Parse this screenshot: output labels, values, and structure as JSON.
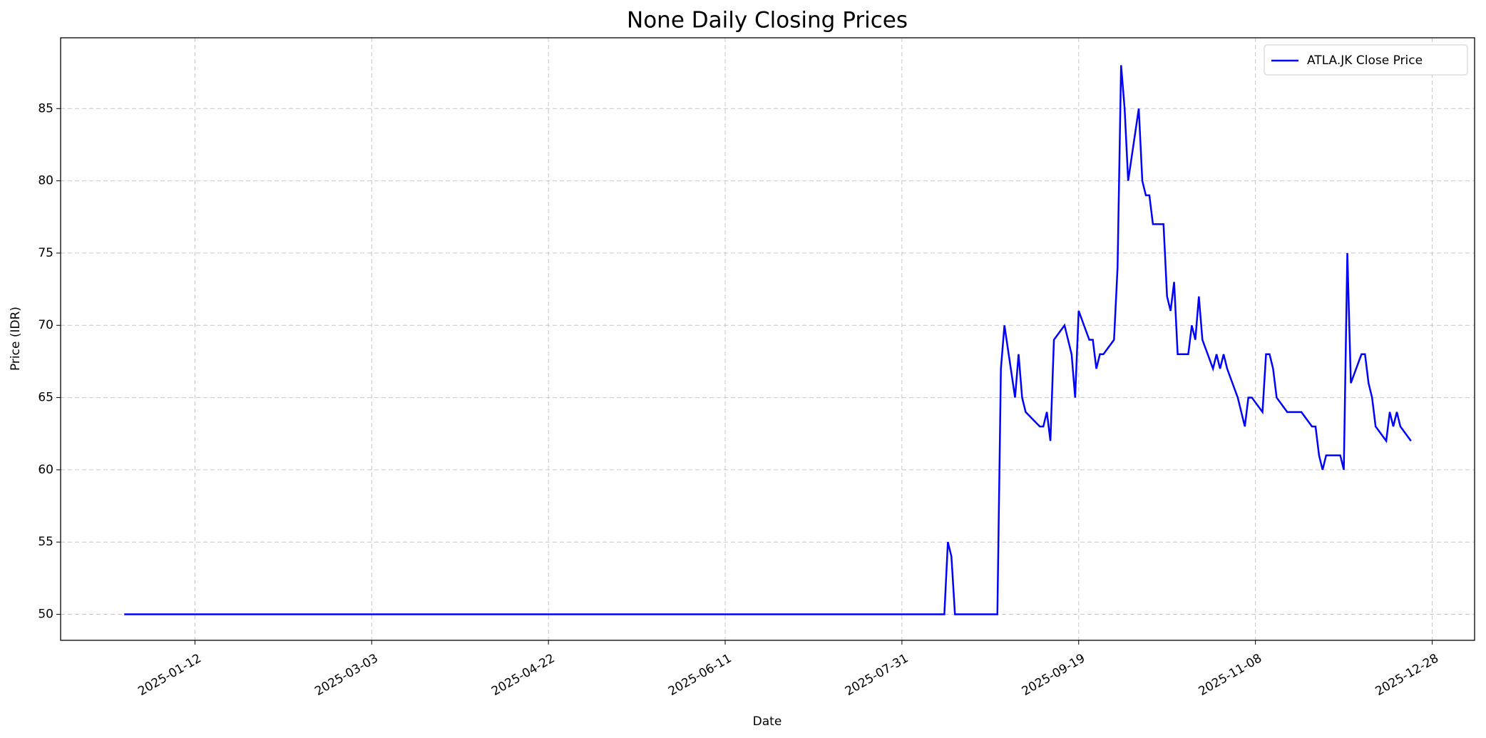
{
  "chart_data": {
    "type": "line",
    "title": "None Daily Closing Prices",
    "x_label": "Date",
    "y_label": "Price (IDR)",
    "x": [
      "2024-12-23",
      "2025-08-12",
      "2025-08-13",
      "2025-08-14",
      "2025-08-15",
      "2025-08-27",
      "2025-08-28",
      "2025-08-29",
      "2025-09-01",
      "2025-09-02",
      "2025-09-03",
      "2025-09-04",
      "2025-09-08",
      "2025-09-09",
      "2025-09-10",
      "2025-09-11",
      "2025-09-12",
      "2025-09-15",
      "2025-09-17",
      "2025-09-18",
      "2025-09-19",
      "2025-09-22",
      "2025-09-23",
      "2025-09-24",
      "2025-09-25",
      "2025-09-26",
      "2025-09-29",
      "2025-09-30",
      "2025-10-01",
      "2025-10-02",
      "2025-10-03",
      "2025-10-06",
      "2025-10-07",
      "2025-10-08",
      "2025-10-09",
      "2025-10-10",
      "2025-10-13",
      "2025-10-14",
      "2025-10-15",
      "2025-10-16",
      "2025-10-17",
      "2025-10-20",
      "2025-10-21",
      "2025-10-22",
      "2025-10-23",
      "2025-10-24",
      "2025-10-27",
      "2025-10-28",
      "2025-10-29",
      "2025-10-30",
      "2025-10-31",
      "2025-11-03",
      "2025-11-05",
      "2025-11-06",
      "2025-11-07",
      "2025-11-10",
      "2025-11-11",
      "2025-11-12",
      "2025-11-13",
      "2025-11-14",
      "2025-11-17",
      "2025-11-21",
      "2025-11-24",
      "2025-11-25",
      "2025-11-26",
      "2025-11-27",
      "2025-11-28",
      "2025-12-01",
      "2025-12-02",
      "2025-12-03",
      "2025-12-04",
      "2025-12-05",
      "2025-12-08",
      "2025-12-09",
      "2025-12-10",
      "2025-12-11",
      "2025-12-12",
      "2025-12-15",
      "2025-12-16",
      "2025-12-17",
      "2025-12-18",
      "2025-12-19",
      "2025-12-22"
    ],
    "series": [
      {
        "name": "ATLA.JK Close Price",
        "color": "#0000ff",
        "values": [
          50,
          50,
          55,
          54,
          50,
          50,
          67,
          70,
          65,
          68,
          65,
          64,
          63,
          63,
          64,
          62,
          69,
          70,
          68,
          65,
          71,
          69,
          69,
          67,
          68,
          68,
          69,
          74,
          88,
          85,
          80,
          85,
          80,
          79,
          79,
          77,
          77,
          72,
          71,
          73,
          68,
          68,
          70,
          69,
          72,
          69,
          67,
          68,
          67,
          68,
          67,
          65,
          63,
          65,
          65,
          64,
          68,
          68,
          67,
          65,
          64,
          64,
          63,
          63,
          61,
          60,
          61,
          61,
          61,
          60,
          75,
          66,
          68,
          68,
          66,
          65,
          63,
          62,
          64,
          63,
          64,
          63,
          62
        ]
      }
    ],
    "xlim": [
      "2024-12-05",
      "2026-01-09"
    ],
    "xticks": [
      "2025-01-12",
      "2025-03-03",
      "2025-04-22",
      "2025-06-11",
      "2025-07-31",
      "2025-09-19",
      "2025-11-08",
      "2025-12-28"
    ],
    "ylim": [
      48.2,
      89.9
    ],
    "yticks": [
      50,
      55,
      60,
      65,
      70,
      75,
      80,
      85
    ],
    "grid": true,
    "legend": "upper right"
  }
}
